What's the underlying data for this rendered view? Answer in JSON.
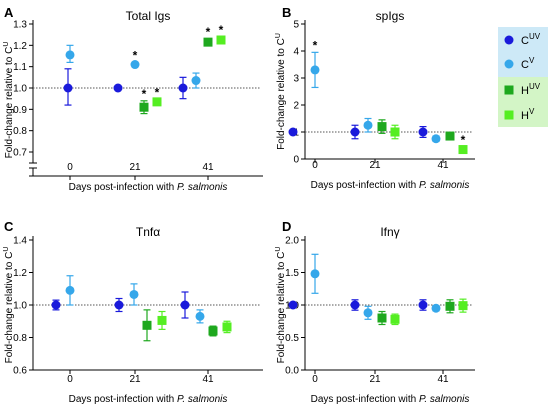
{
  "colors": {
    "CUV": "#1a1adb",
    "CV": "#35a7ea",
    "HUV": "#1ea81e",
    "HV": "#55ee22",
    "legend_bg_C": "#cde9f7",
    "legend_bg_H": "#d3f5c6",
    "reference_line": "#555555"
  },
  "legend": {
    "position": "right",
    "entries": [
      {
        "key": "CUV",
        "base": "C",
        "sup": "UV",
        "marker": "circle"
      },
      {
        "key": "CV",
        "base": "C",
        "sup": "V",
        "marker": "circle"
      },
      {
        "key": "HUV",
        "base": "H",
        "sup": "UV",
        "marker": "square"
      },
      {
        "key": "HV",
        "base": "H",
        "sup": "V",
        "marker": "square"
      }
    ]
  },
  "chart_data": [
    {
      "panel": "A",
      "type": "scatter",
      "title": "Total Igs",
      "xlabel": "Days post-infection with P. salmonis",
      "ylabel": "Fold-change relative to CU",
      "categories": [
        "0",
        "21",
        "41"
      ],
      "ylim": [
        0.7,
        1.3
      ],
      "yticks": [
        "0.7",
        "0.8",
        "0.9",
        "1.0",
        "1.1",
        "1.2",
        "1.3"
      ],
      "yaxis_break": true,
      "reference_line": 1.0,
      "series": [
        {
          "key": "CUV",
          "points": [
            {
              "x": "0",
              "y": 1.0,
              "lo": 0.92,
              "hi": 1.09,
              "star": false
            },
            {
              "x": "21",
              "y": 1.0,
              "lo": 1.0,
              "hi": 1.0,
              "star": false
            },
            {
              "x": "41",
              "y": 1.0,
              "lo": 0.95,
              "hi": 1.05,
              "star": false
            }
          ]
        },
        {
          "key": "CV",
          "points": [
            {
              "x": "0",
              "y": 1.155,
              "lo": 1.12,
              "hi": 1.2,
              "star": false
            },
            {
              "x": "21",
              "y": 1.11,
              "lo": 1.1,
              "hi": 1.12,
              "star": true
            },
            {
              "x": "41",
              "y": 1.035,
              "lo": 1.0,
              "hi": 1.07,
              "star": false
            }
          ]
        },
        {
          "key": "HUV",
          "points": [
            {
              "x": "21",
              "y": 0.91,
              "lo": 0.88,
              "hi": 0.94,
              "star": true
            },
            {
              "x": "41",
              "y": 1.215,
              "lo": 1.2,
              "hi": 1.23,
              "star": true
            }
          ]
        },
        {
          "key": "HV",
          "points": [
            {
              "x": "21",
              "y": 0.935,
              "lo": 0.925,
              "hi": 0.945,
              "star": true
            },
            {
              "x": "41",
              "y": 1.225,
              "lo": 1.21,
              "hi": 1.24,
              "star": true
            }
          ]
        }
      ]
    },
    {
      "panel": "B",
      "type": "scatter",
      "title": "spIgs",
      "xlabel": "Days post-infection with P. salmonis",
      "ylabel": "Fold-change relative to CU",
      "categories": [
        "0",
        "21",
        "41"
      ],
      "ylim": [
        0,
        5
      ],
      "yticks": [
        "0",
        "1",
        "2",
        "3",
        "4",
        "5"
      ],
      "yaxis_break": false,
      "reference_line": 1.0,
      "series": [
        {
          "key": "CUV",
          "points": [
            {
              "x": "0",
              "y": 1.0,
              "lo": 1.0,
              "hi": 1.0,
              "star": false
            },
            {
              "x": "21",
              "y": 1.0,
              "lo": 0.75,
              "hi": 1.25,
              "star": false
            },
            {
              "x": "41",
              "y": 1.0,
              "lo": 0.8,
              "hi": 1.2,
              "star": false
            }
          ]
        },
        {
          "key": "CV",
          "points": [
            {
              "x": "0",
              "y": 3.3,
              "lo": 2.65,
              "hi": 3.95,
              "star": true
            },
            {
              "x": "21",
              "y": 1.25,
              "lo": 1.0,
              "hi": 1.5,
              "star": false
            },
            {
              "x": "41",
              "y": 0.75,
              "lo": 0.65,
              "hi": 0.85,
              "star": false
            }
          ]
        },
        {
          "key": "HUV",
          "points": [
            {
              "x": "21",
              "y": 1.2,
              "lo": 0.95,
              "hi": 1.45,
              "star": false
            },
            {
              "x": "41",
              "y": 0.85,
              "lo": 0.75,
              "hi": 0.95,
              "star": false
            }
          ]
        },
        {
          "key": "HV",
          "points": [
            {
              "x": "21",
              "y": 1.0,
              "lo": 0.75,
              "hi": 1.25,
              "star": false
            },
            {
              "x": "41",
              "y": 0.35,
              "lo": 0.25,
              "hi": 0.45,
              "star": true
            }
          ]
        }
      ]
    },
    {
      "panel": "C",
      "type": "scatter",
      "title": "Tnfα",
      "xlabel": "Days post-infection with P. salmonis",
      "ylabel": "Fold-change relative to CU",
      "categories": [
        "0",
        "21",
        "41"
      ],
      "ylim": [
        0.6,
        1.4
      ],
      "yticks": [
        "0.6",
        "0.8",
        "1.0",
        "1.2",
        "1.4"
      ],
      "yaxis_break": false,
      "reference_line": 1.0,
      "series": [
        {
          "key": "CUV",
          "points": [
            {
              "x": "0",
              "y": 1.0,
              "lo": 0.97,
              "hi": 1.03,
              "star": false
            },
            {
              "x": "21",
              "y": 1.0,
              "lo": 0.96,
              "hi": 1.04,
              "star": false
            },
            {
              "x": "41",
              "y": 1.0,
              "lo": 0.92,
              "hi": 1.08,
              "star": false
            }
          ]
        },
        {
          "key": "CV",
          "points": [
            {
              "x": "0",
              "y": 1.09,
              "lo": 1.0,
              "hi": 1.18,
              "star": false
            },
            {
              "x": "21",
              "y": 1.065,
              "lo": 1.0,
              "hi": 1.13,
              "star": false
            },
            {
              "x": "41",
              "y": 0.93,
              "lo": 0.89,
              "hi": 0.97,
              "star": false
            }
          ]
        },
        {
          "key": "HUV",
          "points": [
            {
              "x": "21",
              "y": 0.875,
              "lo": 0.78,
              "hi": 0.97,
              "star": false
            },
            {
              "x": "41",
              "y": 0.84,
              "lo": 0.81,
              "hi": 0.87,
              "star": false
            }
          ]
        },
        {
          "key": "HV",
          "points": [
            {
              "x": "21",
              "y": 0.905,
              "lo": 0.85,
              "hi": 0.96,
              "star": false
            },
            {
              "x": "41",
              "y": 0.865,
              "lo": 0.83,
              "hi": 0.9,
              "star": false
            }
          ]
        }
      ]
    },
    {
      "panel": "D",
      "type": "scatter",
      "title": "Ifnγ",
      "xlabel": "Days post-infection with P. salmonis",
      "ylabel": "Fold-change relative to CU",
      "categories": [
        "0",
        "21",
        "41"
      ],
      "ylim": [
        0.0,
        2.0
      ],
      "yticks": [
        "0.0",
        "0.5",
        "1.0",
        "1.5",
        "2.0"
      ],
      "yaxis_break": false,
      "reference_line": 1.0,
      "series": [
        {
          "key": "CUV",
          "points": [
            {
              "x": "0",
              "y": 1.0,
              "lo": 1.0,
              "hi": 1.0,
              "star": false
            },
            {
              "x": "21",
              "y": 1.0,
              "lo": 0.92,
              "hi": 1.08,
              "star": false
            },
            {
              "x": "41",
              "y": 1.0,
              "lo": 0.92,
              "hi": 1.08,
              "star": false
            }
          ]
        },
        {
          "key": "CV",
          "points": [
            {
              "x": "0",
              "y": 1.48,
              "lo": 1.18,
              "hi": 1.78,
              "star": false
            },
            {
              "x": "21",
              "y": 0.88,
              "lo": 0.78,
              "hi": 0.98,
              "star": false
            },
            {
              "x": "41",
              "y": 0.95,
              "lo": 0.91,
              "hi": 0.99,
              "star": false
            }
          ]
        },
        {
          "key": "HUV",
          "points": [
            {
              "x": "21",
              "y": 0.8,
              "lo": 0.7,
              "hi": 0.9,
              "star": false
            },
            {
              "x": "41",
              "y": 0.98,
              "lo": 0.88,
              "hi": 1.08,
              "star": false
            }
          ]
        },
        {
          "key": "HV",
          "points": [
            {
              "x": "21",
              "y": 0.78,
              "lo": 0.7,
              "hi": 0.86,
              "star": false
            },
            {
              "x": "41",
              "y": 0.99,
              "lo": 0.89,
              "hi": 1.09,
              "star": false
            }
          ]
        }
      ]
    }
  ]
}
